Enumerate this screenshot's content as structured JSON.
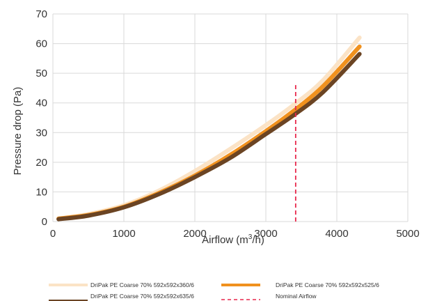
{
  "chart_data": {
    "type": "line",
    "title": "",
    "xlabel_prefix": "Airflow (m",
    "xlabel_sup": "3",
    "xlabel_suffix": "/h)",
    "ylabel": "Pressure drop (Pa)",
    "xlim": [
      0,
      5000
    ],
    "ylim": [
      0,
      70
    ],
    "xticks": [
      "0",
      "1000",
      "2000",
      "3000",
      "4000",
      "5000"
    ],
    "yticks": [
      "0",
      "10",
      "20",
      "30",
      "40",
      "50",
      "60",
      "70"
    ],
    "grid": true,
    "legend_position": "bottom",
    "series": [
      {
        "name": "DriPak PE Coarse 70% 592x592x360/6",
        "color": "#fbe3c6",
        "x": [
          80,
          500,
          1000,
          1500,
          2000,
          2500,
          3000,
          3400,
          3800,
          4320
        ],
        "y": [
          1.0,
          2.5,
          5.5,
          10.5,
          17.0,
          24.5,
          32.5,
          39.5,
          47.5,
          62.0
        ]
      },
      {
        "name": "DriPak PE Coarse 70% 592x592x525/6",
        "color": "#f0911e",
        "x": [
          80,
          500,
          1000,
          1500,
          2000,
          2500,
          3000,
          3400,
          3800,
          4320
        ],
        "y": [
          1.0,
          2.2,
          5.0,
          9.7,
          15.5,
          22.5,
          30.5,
          37.5,
          45.5,
          59.0
        ]
      },
      {
        "name": "DriPak PE Coarse 70% 592x592x635/6",
        "color": "#6b4423",
        "x": [
          80,
          500,
          1000,
          1500,
          2000,
          2500,
          3000,
          3400,
          3800,
          4320
        ],
        "y": [
          0.8,
          2.0,
          4.8,
          9.3,
          15.0,
          21.5,
          29.5,
          36.0,
          43.5,
          56.5
        ]
      }
    ],
    "reference_line": {
      "name": "Nominal Airflow",
      "color": "#e8274b",
      "x": 3420,
      "y_range": [
        0,
        46
      ]
    }
  }
}
